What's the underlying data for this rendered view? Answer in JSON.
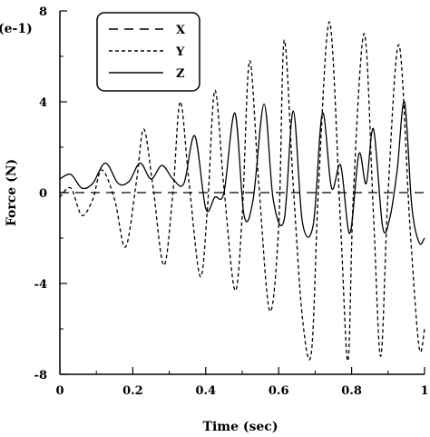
{
  "chart_data": {
    "type": "line",
    "title": "",
    "xlabel": "Time (sec)",
    "ylabel": "Force (N)",
    "y_multiplier_label": "(e-1)",
    "xlim": [
      0,
      1
    ],
    "ylim": [
      -8,
      8
    ],
    "x_ticks": [
      0,
      0.2,
      0.4,
      0.6,
      0.8,
      1
    ],
    "x_tick_labels": [
      "0",
      "0.2",
      "0.4",
      "0.6",
      "0.8",
      "1"
    ],
    "y_ticks": [
      -8,
      -4,
      0,
      4,
      8
    ],
    "y_tick_labels": [
      "-8",
      "-4",
      "0",
      "4",
      "8"
    ],
    "grid": false,
    "legend": {
      "placement": "top-left",
      "entries": [
        "X",
        "Y",
        "Z"
      ]
    },
    "series": [
      {
        "name": "X",
        "style": "long-dash",
        "x": [
          0,
          1
        ],
        "y": [
          0,
          0
        ]
      },
      {
        "name": "Y",
        "style": "short-dash",
        "x": [
          0,
          0.03,
          0.06,
          0.09,
          0.115,
          0.15,
          0.18,
          0.21,
          0.23,
          0.255,
          0.285,
          0.31,
          0.33,
          0.355,
          0.385,
          0.405,
          0.425,
          0.45,
          0.48,
          0.5,
          0.52,
          0.545,
          0.575,
          0.6,
          0.615,
          0.64,
          0.665,
          0.69,
          0.71,
          0.74,
          0.77,
          0.79,
          0.805,
          0.835,
          0.86,
          0.88,
          0.9,
          0.93,
          0.96,
          0.985,
          1.0
        ],
        "y": [
          -0.2,
          0.2,
          -1.0,
          -0.3,
          1.0,
          -0.3,
          -2.4,
          0.5,
          2.8,
          0.3,
          -3.2,
          0.0,
          4.0,
          0.3,
          -3.7,
          -0.6,
          4.5,
          0.2,
          -4.3,
          -1.0,
          5.8,
          0.5,
          -5.2,
          -1.5,
          6.7,
          0.3,
          -5.5,
          -7.0,
          0.5,
          7.5,
          -1.5,
          -7.4,
          0.0,
          7.0,
          -1.0,
          -7.2,
          0.0,
          6.5,
          -1.5,
          -6.8,
          -6.0
        ]
      },
      {
        "name": "Z",
        "style": "solid",
        "x": [
          0,
          0.03,
          0.06,
          0.09,
          0.125,
          0.16,
          0.19,
          0.22,
          0.25,
          0.28,
          0.31,
          0.34,
          0.37,
          0.4,
          0.425,
          0.45,
          0.48,
          0.505,
          0.53,
          0.56,
          0.585,
          0.615,
          0.64,
          0.665,
          0.695,
          0.72,
          0.745,
          0.77,
          0.795,
          0.82,
          0.84,
          0.86,
          0.885,
          0.905,
          0.925,
          0.945,
          0.965,
          0.985,
          1.0
        ],
        "y": [
          0.6,
          0.8,
          0.2,
          0.4,
          1.3,
          0.4,
          0.5,
          1.3,
          0.6,
          1.2,
          0.6,
          0.4,
          2.5,
          -0.7,
          -0.2,
          0.0,
          3.5,
          -1.0,
          -0.3,
          3.9,
          -0.3,
          -1.2,
          3.6,
          -1.3,
          -1.4,
          3.5,
          0.2,
          1.2,
          -1.8,
          1.7,
          0.4,
          2.8,
          -1.5,
          -1.1,
          1.0,
          4.0,
          -0.6,
          -2.2,
          -2.0
        ]
      }
    ]
  }
}
